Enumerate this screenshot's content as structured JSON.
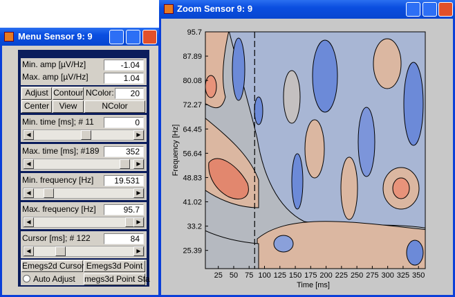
{
  "menu": {
    "title": "Menu Sensor 9: 9",
    "min_amp": {
      "label": "Min. amp [µV/Hz]",
      "value": -1.04
    },
    "max_amp": {
      "label": "Max. amp [µV/Hz]",
      "value": 1.04
    },
    "buttons_row1": [
      "Adjust",
      "Contour"
    ],
    "ncolor": {
      "label": "NColor:",
      "value": 20
    },
    "buttons_row2": [
      "Center",
      "View",
      "NColor"
    ],
    "min_time": {
      "label": "Min. time [ms]; # 11",
      "value": 0
    },
    "max_time": {
      "label": "Max. time [ms]; #189",
      "value": 352
    },
    "min_freq": {
      "label": "Min. frequency [Hz]",
      "value": 19.531
    },
    "max_freq": {
      "label": "Max. frequency [Hz]",
      "value": 95.7
    },
    "cursor": {
      "label": "Cursor [ms]; # 122",
      "value": 84
    },
    "bottom_buttons": [
      "Emegs2d Cursor",
      "Emegs3d Point"
    ],
    "radio": "Auto Adjust",
    "last_button": "megs3d Point Sta"
  },
  "chart_data": {
    "type": "contour",
    "title": "Zoom Sensor 9: 9",
    "x_label": "Time [ms]",
    "y_label": "Frequency [Hz]",
    "xlim": [
      4,
      361
    ],
    "ylim": [
      19.531,
      95.7
    ],
    "xticks": [
      25,
      50,
      75,
      100,
      125,
      150,
      175,
      200,
      225,
      250,
      275,
      300,
      325,
      350
    ],
    "yticks": [
      25.39,
      33.2,
      41.02,
      48.83,
      56.64,
      64.45,
      72.27,
      80.08,
      87.89,
      95.7
    ]
  }
}
